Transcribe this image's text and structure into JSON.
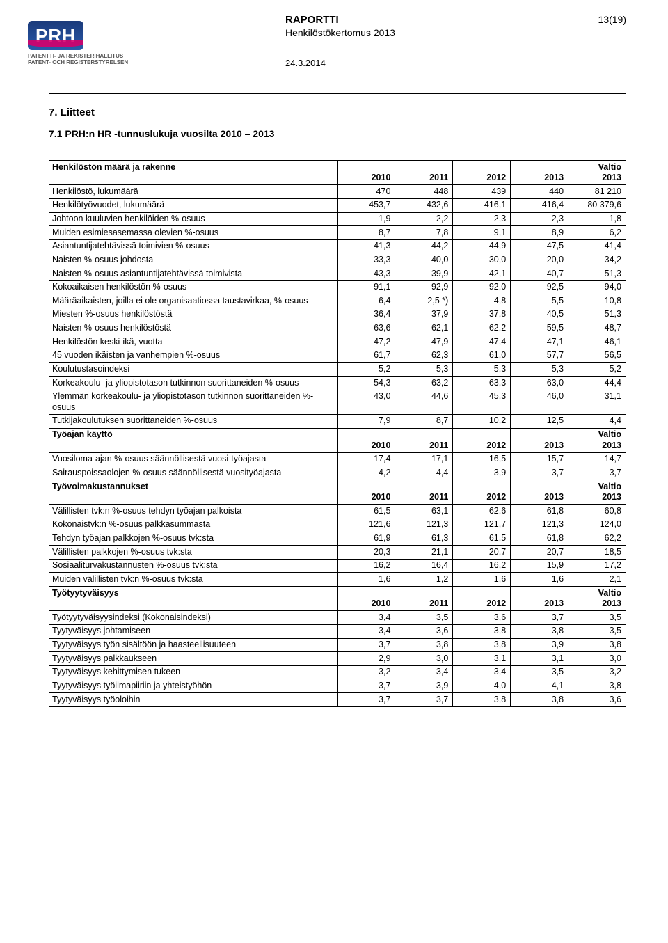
{
  "header": {
    "logoText": "PRH",
    "logoSubFi": "PATENTTI- JA REKISTERIHALLITUS",
    "logoSubSv": "PATENT- OCH REGISTERSTYRELSEN",
    "docType": "RAPORTTI",
    "pageNum": "13(19)",
    "subtitle": "Henkilöstökertomus 2013",
    "date": "24.3.2014"
  },
  "sectionHeading": "7.  Liitteet",
  "subHeading": "7.1 PRH:n HR -tunnuslukuja vuosilta 2010 – 2013",
  "yearCols": [
    "2010",
    "2011",
    "2012",
    "2013"
  ],
  "valtioCol": "Valtio 2013",
  "sections": [
    {
      "title": "Henkilöstön määrä ja rakenne",
      "rows": [
        {
          "l": "Henkilöstö, lukumäärä",
          "v": [
            "470",
            "448",
            "439",
            "440",
            "81 210"
          ]
        },
        {
          "l": "Henkilötyövuodet, lukumäärä",
          "v": [
            "453,7",
            "432,6",
            "416,1",
            "416,4",
            "80 379,6"
          ]
        },
        {
          "l": "Johtoon kuuluvien henkilöiden %-osuus",
          "v": [
            "1,9",
            "2,2",
            "2,3",
            "2,3",
            "1,8"
          ]
        },
        {
          "l": "Muiden esimiesasemassa olevien %-osuus",
          "v": [
            "8,7",
            "7,8",
            "9,1",
            "8,9",
            "6,2"
          ]
        },
        {
          "l": "Asiantuntijatehtävissä toimivien %-osuus",
          "v": [
            "41,3",
            "44,2",
            "44,9",
            "47,5",
            "41,4"
          ]
        },
        {
          "l": "Naisten %-osuus johdosta",
          "v": [
            "33,3",
            "40,0",
            "30,0",
            "20,0",
            "34,2"
          ]
        },
        {
          "l": "Naisten %-osuus asiantuntijatehtävissä toimivista",
          "v": [
            "43,3",
            "39,9",
            "42,1",
            "40,7",
            "51,3"
          ]
        },
        {
          "l": "Kokoaikaisen henkilöstön %-osuus",
          "v": [
            "91,1",
            "92,9",
            "92,0",
            "92,5",
            "94,0"
          ]
        },
        {
          "l": "Määräaikaisten, joilla ei ole organisaatiossa taustavirkaa, %-osuus",
          "v": [
            "6,4",
            "2,5 *)",
            "4,8",
            "5,5",
            "10,8"
          ]
        },
        {
          "l": "Miesten %-osuus henkilöstöstä",
          "v": [
            "36,4",
            "37,9",
            "37,8",
            "40,5",
            "51,3"
          ]
        },
        {
          "l": "Naisten %-osuus henkilöstöstä",
          "v": [
            "63,6",
            "62,1",
            "62,2",
            "59,5",
            "48,7"
          ]
        },
        {
          "l": "Henkilöstön keski-ikä, vuotta",
          "v": [
            "47,2",
            "47,9",
            "47,4",
            "47,1",
            "46,1"
          ]
        },
        {
          "l": "45 vuoden ikäisten ja vanhempien %-osuus",
          "v": [
            "61,7",
            "62,3",
            "61,0",
            "57,7",
            "56,5"
          ]
        },
        {
          "l": "Koulutustasoindeksi",
          "v": [
            "5,2",
            "5,3",
            "5,3",
            "5,3",
            "5,2"
          ]
        },
        {
          "l": "Korkeakoulu- ja yliopistotason tutkinnon suorittaneiden %-osuus",
          "v": [
            "54,3",
            "63,2",
            "63,3",
            "63,0",
            "44,4"
          ]
        },
        {
          "l": "Ylemmän korkeakoulu- ja yliopistotason tutkinnon suorittaneiden %-osuus",
          "v": [
            "43,0",
            "44,6",
            "45,3",
            "46,0",
            "31,1"
          ]
        },
        {
          "l": "Tutkijakoulutuksen suorittaneiden %-osuus",
          "v": [
            "7,9",
            "8,7",
            "10,2",
            "12,5",
            "4,4"
          ]
        }
      ]
    },
    {
      "title": "Työajan käyttö",
      "rows": [
        {
          "l": "Vuosiloma-ajan %-osuus säännöllisestä vuosi-työajasta",
          "v": [
            "17,4",
            "17,1",
            "16,5",
            "15,7",
            "14,7"
          ]
        },
        {
          "l": "Sairauspoissaolojen %-osuus säännöllisestä vuosityöajasta",
          "v": [
            "4,2",
            "4,4",
            "3,9",
            "3,7",
            "3,7"
          ]
        }
      ]
    },
    {
      "title": "Työvoimakustannukset",
      "rows": [
        {
          "l": "Välillisten tvk:n %-osuus tehdyn työajan palkoista",
          "v": [
            "61,5",
            "63,1",
            "62,6",
            "61,8",
            "60,8"
          ]
        },
        {
          "l": "Kokonaistvk:n %-osuus palkkasummasta",
          "v": [
            "121,6",
            "121,3",
            "121,7",
            "121,3",
            "124,0"
          ]
        },
        {
          "l": "Tehdyn työajan palkkojen %-osuus tvk:sta",
          "v": [
            "61,9",
            "61,3",
            "61,5",
            "61,8",
            "62,2"
          ]
        },
        {
          "l": "Välillisten palkkojen %-osuus tvk:sta",
          "v": [
            "20,3",
            "21,1",
            "20,7",
            "20,7",
            "18,5"
          ]
        },
        {
          "l": "Sosiaaliturvakustannusten %-osuus tvk:sta",
          "v": [
            "16,2",
            "16,4",
            "16,2",
            "15,9",
            "17,2"
          ]
        },
        {
          "l": "Muiden välillisten tvk:n %-osuus tvk:sta",
          "v": [
            "1,6",
            "1,2",
            "1,6",
            "1,6",
            "2,1"
          ]
        }
      ]
    },
    {
      "title": "Työtyytyväisyys",
      "rows": [
        {
          "l": "Työtyytyväisyysindeksi (Kokonaisindeksi)",
          "v": [
            "3,4",
            "3,5",
            "3,6",
            "3,7",
            "3,5"
          ]
        },
        {
          "l": "Tyytyväisyys johtamiseen",
          "v": [
            "3,4",
            "3,6",
            "3,8",
            "3,8",
            "3,5"
          ]
        },
        {
          "l": "Tyytyväisyys työn sisältöön ja haasteellisuuteen",
          "v": [
            "3,7",
            "3,8",
            "3,8",
            "3,9",
            "3,8"
          ]
        },
        {
          "l": "Tyytyväisyys palkkaukseen",
          "v": [
            "2,9",
            "3,0",
            "3,1",
            "3,1",
            "3,0"
          ]
        },
        {
          "l": "Tyytyväisyys kehittymisen tukeen",
          "v": [
            "3,2",
            "3,4",
            "3,4",
            "3,5",
            "3,2"
          ]
        },
        {
          "l": "Tyytyväisyys työilmapiiriin ja yhteistyöhön",
          "v": [
            "3,7",
            "3,9",
            "4,0",
            "4,1",
            "3,8"
          ]
        },
        {
          "l": "Tyytyväisyys työoloihin",
          "v": [
            "3,7",
            "3,7",
            "3,8",
            "3,8",
            "3,6"
          ]
        }
      ]
    }
  ]
}
